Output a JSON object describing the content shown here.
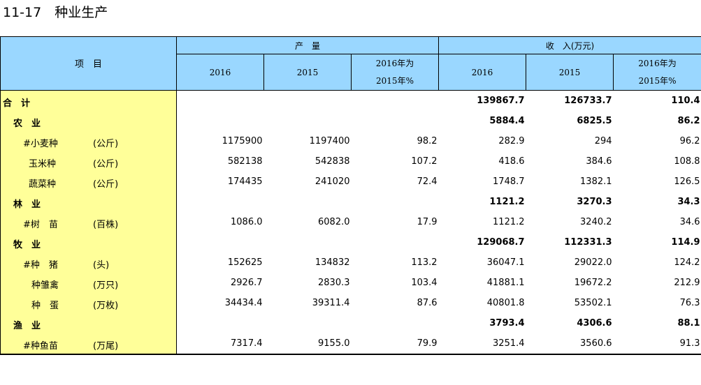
{
  "title": "11-17　种业生产",
  "header": {
    "item_label": "项　目",
    "output_group": "产　量",
    "income_group": "收　入(万元)",
    "col_2016": "2016",
    "col_2015": "2015",
    "ratio_line1": "2016年为",
    "ratio_line2": "2015年%"
  },
  "rows": [
    {
      "name": "合　计",
      "unit": "",
      "level": 0,
      "bold": true,
      "output_2016": "",
      "output_2015": "",
      "output_ratio": "",
      "income_2016": "139867.7",
      "income_2015": "126733.7",
      "income_ratio": "110.4"
    },
    {
      "name": "农　业",
      "unit": "",
      "level": 1,
      "bold": true,
      "output_2016": "",
      "output_2015": "",
      "output_ratio": "",
      "income_2016": "5884.4",
      "income_2015": "6825.5",
      "income_ratio": "86.2"
    },
    {
      "name": "#小麦种",
      "unit": "(公斤)",
      "level": 2,
      "bold": false,
      "output_2016": "1175900",
      "output_2015": "1197400",
      "output_ratio": "98.2",
      "income_2016": "282.9",
      "income_2015": "294",
      "income_ratio": "96.2"
    },
    {
      "name": "玉米种",
      "unit": "(公斤)",
      "level": 3,
      "bold": false,
      "output_2016": "582138",
      "output_2015": "542838",
      "output_ratio": "107.2",
      "income_2016": "418.6",
      "income_2015": "384.6",
      "income_ratio": "108.8"
    },
    {
      "name": "蔬菜种",
      "unit": "(公斤)",
      "level": 3,
      "bold": false,
      "output_2016": "174435",
      "output_2015": "241020",
      "output_ratio": "72.4",
      "income_2016": "1748.7",
      "income_2015": "1382.1",
      "income_ratio": "126.5"
    },
    {
      "name": "林　业",
      "unit": "",
      "level": 1,
      "bold": true,
      "output_2016": "",
      "output_2015": "",
      "output_ratio": "",
      "income_2016": "1121.2",
      "income_2015": "3270.3",
      "income_ratio": "34.3"
    },
    {
      "name": "#树　苗",
      "unit": "(百株)",
      "level": 2,
      "bold": false,
      "output_2016": "1086.0",
      "output_2015": "6082.0",
      "output_ratio": "17.9",
      "income_2016": "1121.2",
      "income_2015": "3240.2",
      "income_ratio": "34.6"
    },
    {
      "name": "牧　业",
      "unit": "",
      "level": 1,
      "bold": true,
      "output_2016": "",
      "output_2015": "",
      "output_ratio": "",
      "income_2016": "129068.7",
      "income_2015": "112331.3",
      "income_ratio": "114.9"
    },
    {
      "name": "#种　猪",
      "unit": "(头)",
      "level": 2,
      "bold": false,
      "output_2016": "152625",
      "output_2015": "134832",
      "output_ratio": "113.2",
      "income_2016": "36047.1",
      "income_2015": "29022.0",
      "income_ratio": "124.2"
    },
    {
      "name": "种雏禽",
      "unit": "(万只)",
      "level": 4,
      "bold": false,
      "output_2016": "2926.7",
      "output_2015": "2830.3",
      "output_ratio": "103.4",
      "income_2016": "41881.1",
      "income_2015": "19672.2",
      "income_ratio": "212.9"
    },
    {
      "name": "种　蛋",
      "unit": "(万枚)",
      "level": 4,
      "bold": false,
      "output_2016": "34434.4",
      "output_2015": "39311.4",
      "output_ratio": "87.6",
      "income_2016": "40801.8",
      "income_2015": "53502.1",
      "income_ratio": "76.3"
    },
    {
      "name": "渔　业",
      "unit": "",
      "level": 1,
      "bold": true,
      "output_2016": "",
      "output_2015": "",
      "output_ratio": "",
      "income_2016": "3793.4",
      "income_2015": "4306.6",
      "income_ratio": "88.1"
    },
    {
      "name": "#种鱼苗",
      "unit": "(万尾)",
      "level": 2,
      "bold": false,
      "output_2016": "7317.4",
      "output_2015": "9155.0",
      "output_ratio": "79.9",
      "income_2016": "3251.4",
      "income_2015": "3560.6",
      "income_ratio": "91.3"
    }
  ]
}
